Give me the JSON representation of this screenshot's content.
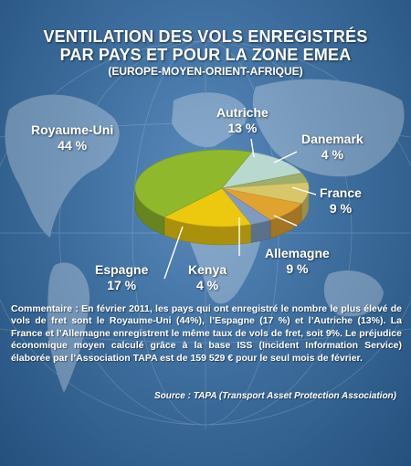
{
  "header": {
    "title_line1": "VENTILATION DES VOLS ENREGISTRÉS",
    "title_line2": "PAR PAYS ET POUR LA ZONE EMEA",
    "subtitle": "(EUROPE-MOYEN-ORIENT-AFRIQUE)"
  },
  "chart_data": {
    "type": "pie",
    "title": "VENTILATION DES VOLS ENREGISTRÉS PAR PAYS ET POUR LA ZONE EMEA",
    "subtitle": "(EUROPE-MOYEN-ORIENT-AFRIQUE)",
    "unit": "%",
    "slices": [
      {
        "name": "Royaume-Uni",
        "value": 44,
        "label": "44 %",
        "color": "#8fb82c"
      },
      {
        "name": "Autriche",
        "value": 13,
        "label": "13 %",
        "color": "#b9d8d0"
      },
      {
        "name": "Danemark",
        "value": 4,
        "label": "4 %",
        "color": "#9fae6a"
      },
      {
        "name": "France",
        "value": 9,
        "label": "9 %",
        "color": "#d7c768"
      },
      {
        "name": "Allemagne",
        "value": 9,
        "label": "9 %",
        "color": "#e1a32f"
      },
      {
        "name": "Kenya",
        "value": 4,
        "label": "4 %",
        "color": "#7f9bbf"
      },
      {
        "name": "Espagne",
        "value": 17,
        "label": "17 %",
        "color": "#ecc90f"
      }
    ]
  },
  "footer": {
    "comment": "Commentaire : En février 2011, les pays qui ont enregistré le nombre le plus élevé de vols de fret sont le Royaume-Uni (44%), l’Espagne (17 %) et l’Autriche (13%). La France et l’Allemagne enregistrent le même taux de vols de fret, soit 9%. Le préjudice économique moyen calculé grâce à la base ISS (Incident Information Service) élaborée par l’Association TAPA est de 159 529 € pour le seul mois de février.",
    "source": "Source : TAPA (Transport Asset Protection Association)"
  }
}
